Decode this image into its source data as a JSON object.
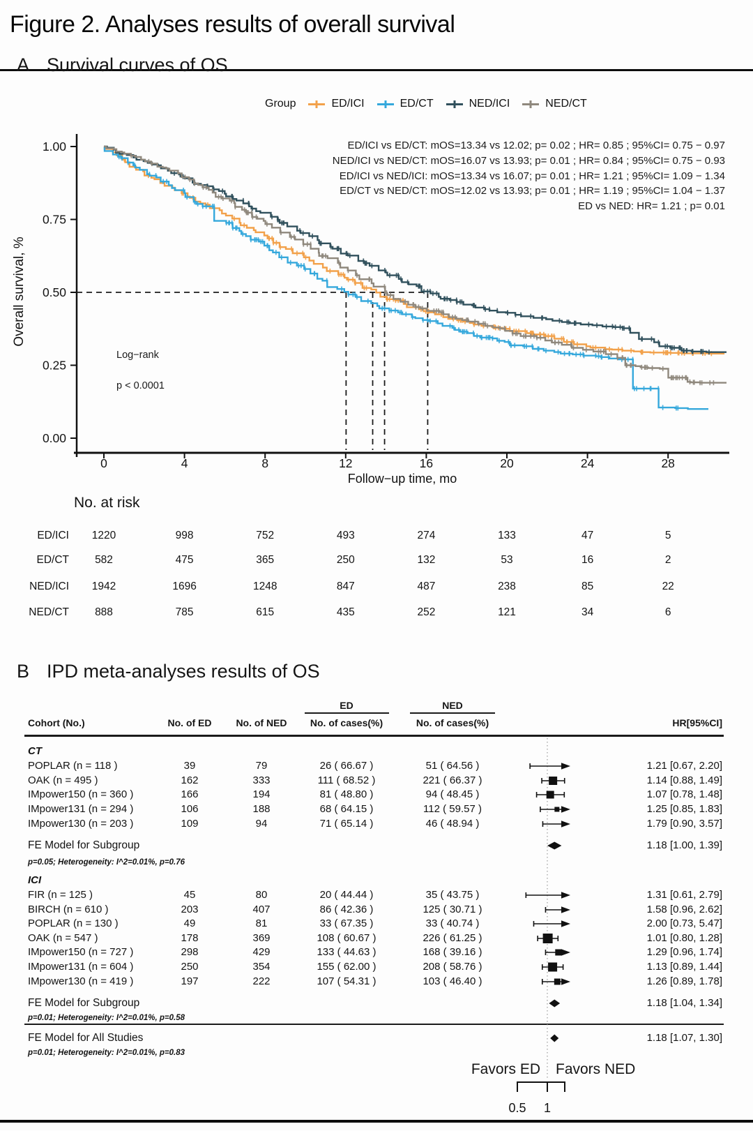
{
  "figure": {
    "title": "Figure 2. Analyses results of overall survival"
  },
  "panel_a": {
    "label": "A",
    "title": "Survival curves of OS",
    "legend": {
      "title": "Group",
      "items": [
        {
          "label": "ED/ICI",
          "color": "#F2A14A"
        },
        {
          "label": "ED/CT",
          "color": "#35A8DC"
        },
        {
          "label": "NED/ICI",
          "color": "#30505C"
        },
        {
          "label": "NED/CT",
          "color": "#8F887D"
        }
      ]
    },
    "annotations": [
      "ED/ICI vs ED/CT: mOS=13.34 vs 12.02; p= 0.02 ; HR= 0.85 ; 95%CI= 0.75 − 0.97",
      "NED/ICI vs NED/CT: mOS=16.07 vs 13.93; p= 0.01 ; HR= 0.84 ; 95%CI= 0.75 − 0.93",
      "ED/ICI vs NED/ICI: mOS=13.34 vs 16.07; p= 0.01 ; HR= 1.21 ; 95%CI= 1.09 − 1.34",
      "ED/CT vs NED/CT: mOS=12.02 vs 13.93; p= 0.01 ; HR= 1.19 ; 95%CI= 1.04 − 1.37",
      "ED vs NED: HR= 1.21 ; p= 0.01"
    ],
    "logrank": {
      "test": "Log−rank",
      "p": "p < 0.0001"
    },
    "axes": {
      "x_label": "Follow−up time, mo",
      "y_label": "Overall survival, %",
      "x_ticks": [
        "0",
        "4",
        "8",
        "12",
        "16",
        "20",
        "24",
        "28"
      ],
      "y_ticks": [
        "1.00",
        "0.75",
        "0.50",
        "0.25",
        "0.00"
      ]
    },
    "risk_table": {
      "title": "No. at risk",
      "time_points": [
        0,
        4,
        8,
        12,
        16,
        20,
        24,
        28
      ],
      "rows": [
        {
          "label": "ED/ICI",
          "values": [
            "1220",
            "998",
            "752",
            "493",
            "274",
            "133",
            "47",
            "5"
          ]
        },
        {
          "label": "ED/CT",
          "values": [
            "582",
            "475",
            "365",
            "250",
            "132",
            "53",
            "16",
            "2"
          ]
        },
        {
          "label": "NED/ICI",
          "values": [
            "1942",
            "1696",
            "1248",
            "847",
            "487",
            "238",
            "85",
            "22"
          ]
        },
        {
          "label": "NED/CT",
          "values": [
            "888",
            "785",
            "615",
            "435",
            "252",
            "121",
            "34",
            "6"
          ]
        }
      ]
    }
  },
  "panel_b": {
    "label": "B",
    "title": "IPD meta-analyses results of OS",
    "headers": {
      "cohort": "Cohort (No.)",
      "no_of_ed": "No. of ED",
      "no_of_ned": "No. of NED",
      "ed": "ED",
      "ned": "NED",
      "cases": "No. of cases(%)",
      "hr": "HR[95%CI]"
    },
    "favors": {
      "ed": "Favors ED",
      "ned": "Favors NED"
    }
  },
  "chart_data": [
    {
      "type": "line",
      "subtype": "kaplan-meier",
      "title": "Survival curves of OS",
      "xlabel": "Follow−up time, mo",
      "ylabel": "Overall survival, %",
      "xlim": [
        0,
        31
      ],
      "ylim": [
        0.0,
        1.0
      ],
      "x_months": [
        0,
        1,
        2,
        3,
        4,
        5,
        6,
        7,
        8,
        9,
        10,
        11,
        12,
        13,
        14,
        15,
        16,
        17,
        18,
        19,
        20,
        21,
        22,
        23,
        24,
        25,
        26,
        27,
        28,
        29,
        30
      ],
      "survival_at_half": 0.5,
      "median_drop_lines": [
        12.02,
        13.34,
        13.93,
        16.07
      ],
      "logrank_p": "p < 0.0001",
      "series": [
        {
          "name": "ED/ICI",
          "color": "#F2A14A",
          "median_os": 13.34,
          "end": 30.8,
          "values": [
            1.0,
            0.955,
            0.915,
            0.875,
            0.84,
            0.805,
            0.77,
            0.73,
            0.695,
            0.655,
            0.62,
            0.585,
            0.55,
            0.515,
            0.485,
            0.46,
            0.435,
            0.415,
            0.4,
            0.385,
            0.375,
            0.36,
            0.35,
            0.33,
            0.315,
            0.305,
            0.3,
            0.295,
            0.293,
            0.291,
            0.29
          ]
        },
        {
          "name": "ED/CT",
          "color": "#35A8DC",
          "median_os": 12.02,
          "end": 29.5,
          "values": [
            1.0,
            0.96,
            0.92,
            0.88,
            0.84,
            0.795,
            0.745,
            0.7,
            0.66,
            0.62,
            0.58,
            0.54,
            0.502,
            0.47,
            0.445,
            0.425,
            0.405,
            0.385,
            0.365,
            0.345,
            0.33,
            0.315,
            0.3,
            0.29,
            0.283,
            0.278,
            0.27,
            0.17,
            0.105,
            0.1,
            0.1
          ]
        },
        {
          "name": "NED/ICI",
          "color": "#30505C",
          "median_os": 16.07,
          "end": 30.9,
          "values": [
            1.0,
            0.975,
            0.95,
            0.925,
            0.897,
            0.868,
            0.838,
            0.805,
            0.773,
            0.738,
            0.703,
            0.668,
            0.633,
            0.6,
            0.568,
            0.535,
            0.503,
            0.478,
            0.458,
            0.442,
            0.43,
            0.418,
            0.408,
            0.398,
            0.39,
            0.383,
            0.377,
            0.34,
            0.315,
            0.3,
            0.295
          ]
        },
        {
          "name": "NED/CT",
          "color": "#8F887D",
          "median_os": 13.93,
          "end": 30.9,
          "values": [
            1.0,
            0.98,
            0.955,
            0.928,
            0.895,
            0.86,
            0.822,
            0.783,
            0.745,
            0.705,
            0.665,
            0.625,
            0.585,
            0.545,
            0.498,
            0.468,
            0.445,
            0.425,
            0.405,
            0.385,
            0.368,
            0.35,
            0.335,
            0.32,
            0.303,
            0.288,
            0.25,
            0.243,
            0.238,
            0.193,
            0.19
          ]
        }
      ]
    },
    {
      "type": "forest",
      "x_axis": {
        "scale": "log",
        "ticks": [
          "0.5",
          "1"
        ],
        "tick_values": [
          0.5,
          1
        ],
        "ref_line": 1
      },
      "favors": {
        "left": "Favors ED",
        "right": "Favors NED"
      },
      "groups": [
        {
          "name": "CT",
          "rows": [
            {
              "cohort": "POPLAR (n = 118 )",
              "ed": "39",
              "ned": "79",
              "ed_cases": "26 ( 66.67 )",
              "ned_cases": "51 ( 64.56 )",
              "hr": 1.21,
              "lo": 0.67,
              "hi": 2.2,
              "hr_label": "1.21 [0.67, 2.20]",
              "weight": 0
            },
            {
              "cohort": "OAK (n = 495 )",
              "ed": "162",
              "ned": "333",
              "ed_cases": "111 ( 68.52 )",
              "ned_cases": "221 ( 66.37 )",
              "hr": 1.14,
              "lo": 0.88,
              "hi": 1.49,
              "hr_label": "1.14 [0.88, 1.49]",
              "weight": 10
            },
            {
              "cohort": "IMpower150 (n = 360 )",
              "ed": "166",
              "ned": "194",
              "ed_cases": "81 ( 48.80 )",
              "ned_cases": "94 ( 48.45 )",
              "hr": 1.07,
              "lo": 0.78,
              "hi": 1.48,
              "hr_label": "1.07 [0.78, 1.48]",
              "weight": 9
            },
            {
              "cohort": "IMpower131 (n = 294 )",
              "ed": "106",
              "ned": "188",
              "ed_cases": "68 ( 64.15 )",
              "ned_cases": "112 ( 59.57 )",
              "hr": 1.25,
              "lo": 0.85,
              "hi": 1.83,
              "hr_label": "1.25 [0.85, 1.83]",
              "weight": 5
            },
            {
              "cohort": "IMpower130 (n = 203 )",
              "ed": "109",
              "ned": "94",
              "ed_cases": "71 ( 65.14 )",
              "ned_cases": "46 ( 48.94 )",
              "hr": 1.79,
              "lo": 0.9,
              "hi": 3.57,
              "hr_label": "1.79 [0.90, 3.57]",
              "weight": 0
            }
          ],
          "summary": {
            "label": "FE Model for Subgroup",
            "hr": 1.18,
            "lo": 1.0,
            "hi": 1.39,
            "hr_label": "1.18 [1.00, 1.39]",
            "stats": "p=0.05; Heterogeneity: I^2=0.01%, p=0.76"
          }
        },
        {
          "name": "ICI",
          "rows": [
            {
              "cohort": "FIR (n = 125 )",
              "ed": "45",
              "ned": "80",
              "ed_cases": "20 ( 44.44 )",
              "ned_cases": "35 ( 43.75 )",
              "hr": 1.31,
              "lo": 0.61,
              "hi": 2.79,
              "hr_label": "1.31 [0.61, 2.79]",
              "weight": 0
            },
            {
              "cohort": "BIRCH (n = 610 )",
              "ed": "203",
              "ned": "407",
              "ed_cases": "86 ( 42.36 )",
              "ned_cases": "125 ( 30.71 )",
              "hr": 1.58,
              "lo": 0.96,
              "hi": 2.62,
              "hr_label": "1.58 [0.96, 2.62]",
              "weight": 0
            },
            {
              "cohort": "POPLAR (n = 130 )",
              "ed": "49",
              "ned": "81",
              "ed_cases": "33 ( 67.35 )",
              "ned_cases": "33 ( 40.74 )",
              "hr": 2.0,
              "lo": 0.73,
              "hi": 5.47,
              "hr_label": "2.00 [0.73, 5.47]",
              "weight": 0
            },
            {
              "cohort": "OAK (n = 547 )",
              "ed": "178",
              "ned": "369",
              "ed_cases": "108 ( 60.67 )",
              "ned_cases": "226 ( 61.25 )",
              "hr": 1.01,
              "lo": 0.8,
              "hi": 1.28,
              "hr_label": "1.01 [0.80, 1.28]",
              "weight": 12
            },
            {
              "cohort": "IMpower150 (n = 727 )",
              "ed": "298",
              "ned": "429",
              "ed_cases": "133 ( 44.63 )",
              "ned_cases": "168 ( 39.16 )",
              "hr": 1.29,
              "lo": 0.96,
              "hi": 1.74,
              "hr_label": "1.29 [0.96, 1.74]",
              "weight": 7
            },
            {
              "cohort": "IMpower131 (n = 604 )",
              "ed": "250",
              "ned": "354",
              "ed_cases": "155 ( 62.00 )",
              "ned_cases": "208 ( 58.76 )",
              "hr": 1.13,
              "lo": 0.89,
              "hi": 1.44,
              "hr_label": "1.13 [0.89, 1.44]",
              "weight": 11
            },
            {
              "cohort": "IMpower130 (n = 419 )",
              "ed": "197",
              "ned": "222",
              "ed_cases": "107 ( 54.31 )",
              "ned_cases": "103 ( 46.40 )",
              "hr": 1.26,
              "lo": 0.89,
              "hi": 1.78,
              "hr_label": "1.26 [0.89, 1.78]",
              "weight": 7
            }
          ],
          "summary": {
            "label": "FE Model for Subgroup",
            "hr": 1.18,
            "lo": 1.04,
            "hi": 1.34,
            "hr_label": "1.18 [1.04, 1.34]",
            "stats": "p=0.01; Heterogeneity: I^2=0.01%, p=0.58"
          }
        }
      ],
      "overall": {
        "label": "FE Model for All Studies",
        "hr": 1.18,
        "lo": 1.07,
        "hi": 1.3,
        "hr_label": "1.18 [1.07, 1.30]",
        "stats": "p=0.01; Heterogeneity: I^2=0.01%, p=0.83"
      }
    }
  ]
}
